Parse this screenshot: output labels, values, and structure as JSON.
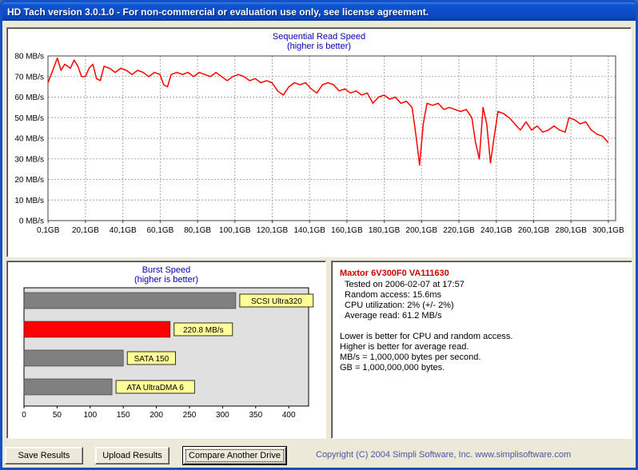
{
  "window": {
    "title": "HD Tach version 3.0.1.0 - For non-commercial or evaluation use only, see license agreement."
  },
  "colors": {
    "titlebar_blue": "#0F52C9",
    "window_bg": "#ECE9D8",
    "panel_bg": "#FFFFFF",
    "chart_title_blue": "#0000B4",
    "line_red": "#FF0000",
    "bar_gray": "#808080",
    "label_yellow": "#FFFF99",
    "drive_name_red": "#CC0000",
    "copyright_blue": "#4A55A2"
  },
  "chart_data": [
    {
      "type": "line",
      "title": "Sequential Read Speed",
      "subtitle": "(higher is better)",
      "xlim": [
        0,
        304
      ],
      "ylim": [
        0,
        80
      ],
      "grid": true,
      "line_color": "#FF0000",
      "x_tick_values": [
        0.1,
        20.1,
        40.1,
        60.1,
        80.1,
        100.1,
        120.1,
        140.1,
        160.1,
        180.1,
        200.1,
        220.1,
        240.1,
        260.1,
        280.1,
        300.1
      ],
      "x_tick_labels": [
        "0,1GB",
        "20,1GB",
        "40,1GB",
        "60,1GB",
        "80,1GB",
        "100,1GB",
        "120,1GB",
        "140,1GB",
        "160,1GB",
        "180,1GB",
        "200,1GB",
        "220,1GB",
        "240,1GB",
        "260,1GB",
        "280,1GB",
        "300,1GB"
      ],
      "y_tick_labels": [
        "0 MB/s",
        "10 MB/s",
        "20 MB/s",
        "30 MB/s",
        "40 MB/s",
        "50 MB/s",
        "60 MB/s",
        "70 MB/s",
        "80 MB/s"
      ],
      "points": [
        [
          0,
          67
        ],
        [
          3,
          74
        ],
        [
          5,
          79
        ],
        [
          7,
          73
        ],
        [
          9,
          76
        ],
        [
          12,
          74
        ],
        [
          14,
          78
        ],
        [
          16,
          75
        ],
        [
          18,
          70
        ],
        [
          20,
          70
        ],
        [
          22,
          74
        ],
        [
          24,
          76
        ],
        [
          26,
          69
        ],
        [
          28,
          68
        ],
        [
          30,
          75
        ],
        [
          33,
          74
        ],
        [
          36,
          72
        ],
        [
          39,
          74
        ],
        [
          42,
          73
        ],
        [
          45,
          71
        ],
        [
          48,
          73
        ],
        [
          51,
          72
        ],
        [
          54,
          70
        ],
        [
          57,
          72
        ],
        [
          60,
          71
        ],
        [
          62,
          66
        ],
        [
          64,
          65
        ],
        [
          66,
          71
        ],
        [
          69,
          72
        ],
        [
          72,
          71
        ],
        [
          75,
          72
        ],
        [
          78,
          70
        ],
        [
          81,
          72
        ],
        [
          84,
          71
        ],
        [
          87,
          70
        ],
        [
          90,
          72
        ],
        [
          93,
          70
        ],
        [
          96,
          68
        ],
        [
          99,
          70
        ],
        [
          102,
          71
        ],
        [
          105,
          70
        ],
        [
          108,
          68
        ],
        [
          111,
          69
        ],
        [
          114,
          67
        ],
        [
          117,
          68
        ],
        [
          120,
          67
        ],
        [
          123,
          63
        ],
        [
          126,
          61
        ],
        [
          129,
          65
        ],
        [
          132,
          67
        ],
        [
          135,
          66
        ],
        [
          138,
          67
        ],
        [
          141,
          64
        ],
        [
          144,
          62
        ],
        [
          147,
          66
        ],
        [
          150,
          67
        ],
        [
          153,
          66
        ],
        [
          156,
          63
        ],
        [
          159,
          64
        ],
        [
          162,
          62
        ],
        [
          165,
          63
        ],
        [
          168,
          61
        ],
        [
          171,
          62
        ],
        [
          174,
          57
        ],
        [
          177,
          60
        ],
        [
          180,
          61
        ],
        [
          183,
          59
        ],
        [
          186,
          60
        ],
        [
          189,
          57
        ],
        [
          192,
          58
        ],
        [
          195,
          55
        ],
        [
          197,
          42
        ],
        [
          199,
          27
        ],
        [
          201,
          47
        ],
        [
          203,
          57
        ],
        [
          206,
          56
        ],
        [
          209,
          57
        ],
        [
          212,
          54
        ],
        [
          215,
          55
        ],
        [
          218,
          54
        ],
        [
          221,
          53
        ],
        [
          224,
          54
        ],
        [
          227,
          50
        ],
        [
          229,
          38
        ],
        [
          231,
          30
        ],
        [
          233,
          55
        ],
        [
          235,
          47
        ],
        [
          237,
          28
        ],
        [
          239,
          41
        ],
        [
          241,
          53
        ],
        [
          244,
          52
        ],
        [
          247,
          50
        ],
        [
          250,
          47
        ],
        [
          253,
          44
        ],
        [
          256,
          48
        ],
        [
          259,
          44
        ],
        [
          262,
          46
        ],
        [
          265,
          43
        ],
        [
          268,
          44
        ],
        [
          271,
          46
        ],
        [
          274,
          44
        ],
        [
          277,
          43
        ],
        [
          279,
          50
        ],
        [
          282,
          49
        ],
        [
          285,
          47
        ],
        [
          288,
          48
        ],
        [
          291,
          44
        ],
        [
          294,
          42
        ],
        [
          297,
          41
        ],
        [
          300,
          38
        ]
      ]
    },
    {
      "type": "bar",
      "title": "Burst Speed",
      "subtitle": "(higher is better)",
      "orientation": "horizontal",
      "xlim": [
        0,
        430
      ],
      "x_ticks": [
        0,
        50,
        100,
        150,
        200,
        250,
        300,
        350,
        400
      ],
      "plot_bg": "#E0E0E0",
      "label_bg": "#FFFF99",
      "bars": [
        {
          "label": "SCSI Ultra320",
          "value": 320,
          "color": "#808080"
        },
        {
          "label": "220.8 MB/s",
          "value": 220.8,
          "color": "#FF0000"
        },
        {
          "label": "SATA 150",
          "value": 150,
          "color": "#808080"
        },
        {
          "label": "ATA UltraDMA 6",
          "value": 133,
          "color": "#808080"
        }
      ]
    }
  ],
  "drive_info": {
    "name": "Maxtor 6V300F0 VA111630",
    "details": [
      "Tested on 2006-02-07 at 17:57",
      "Random access: 15.6ms",
      "CPU utilization: 2% (+/- 2%)",
      "Average read: 61.2 MB/s"
    ],
    "notes": [
      "Lower is better for CPU and random access.",
      "Higher is better for average read.",
      "MB/s = 1,000,000 bytes per second.",
      "GB = 1,000,000,000 bytes."
    ]
  },
  "buttons": {
    "save": "Save Results",
    "upload": "Upload Results",
    "compare": "Compare Another Drive"
  },
  "copyright": "Copyright (C) 2004 Simpli Software, Inc. www.simplisoftware.com"
}
